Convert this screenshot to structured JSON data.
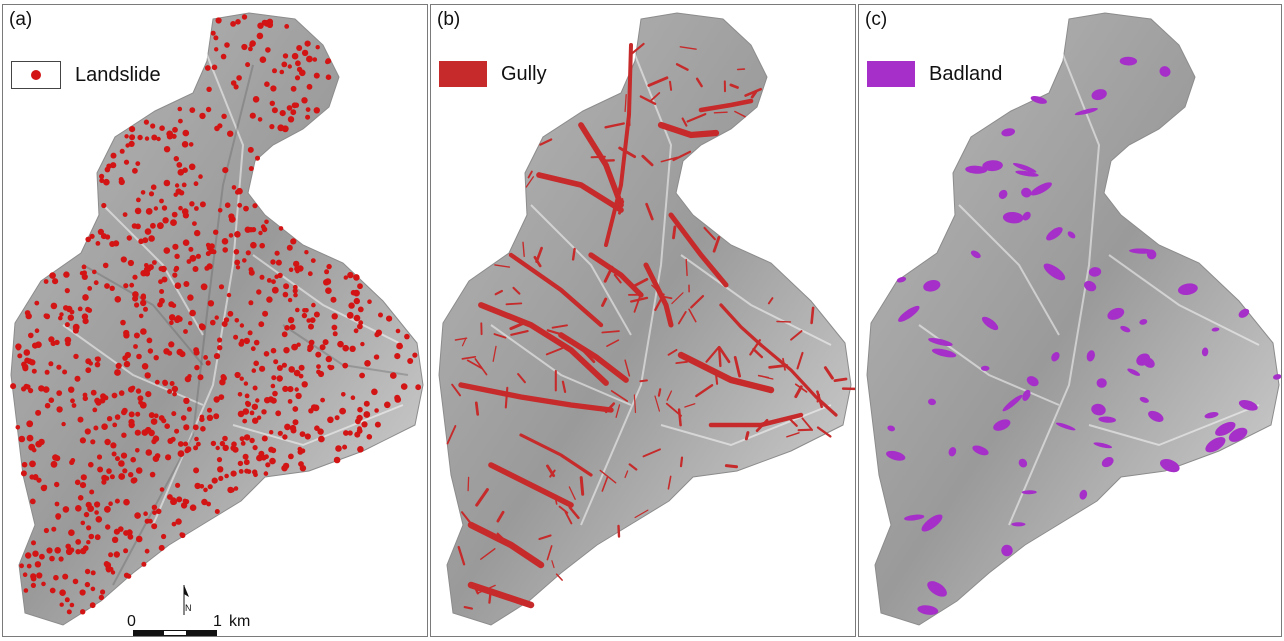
{
  "panels": [
    {
      "label": "(a)",
      "legend": "Landslide",
      "color": "#d21414",
      "kind": "dots"
    },
    {
      "label": "(b)",
      "legend": "Gully",
      "color": "#c62a2a",
      "kind": "channels"
    },
    {
      "label": "(c)",
      "legend": "Badland",
      "color": "#a52fc8",
      "kind": "patches"
    }
  ],
  "scale": {
    "start": "0",
    "end": "1",
    "unit": "km"
  },
  "north": "N"
}
